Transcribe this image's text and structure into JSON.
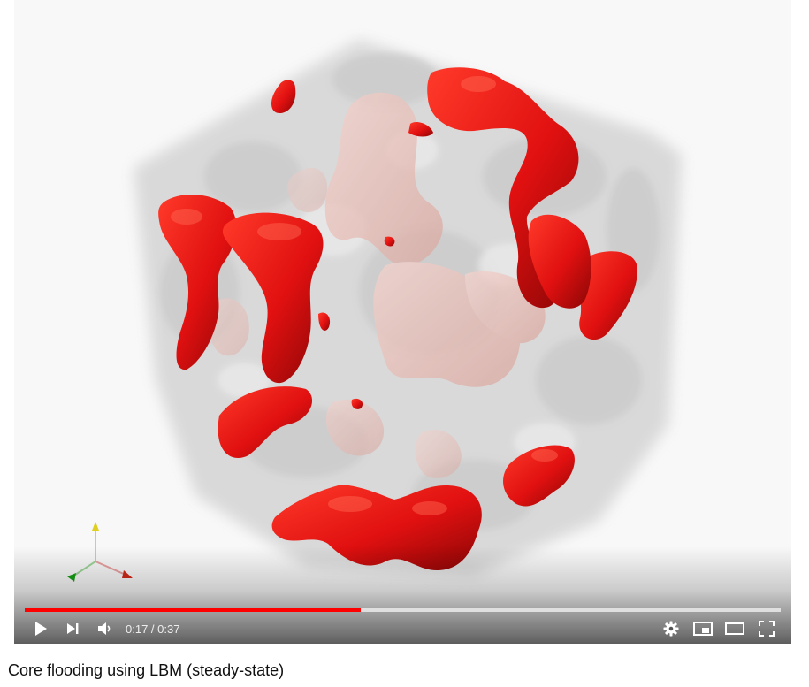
{
  "video": {
    "title": "Core flooding using LBM (steady-state)",
    "current_time": "0:17",
    "duration": "0:37",
    "time_display": "0:17 / 0:37",
    "played_fraction": 0.445,
    "loaded_fraction": 1.0,
    "accent_color": "#ff0000"
  },
  "controls": {
    "play": "play-icon",
    "next": "next-icon",
    "volume": "volume-icon",
    "settings": "gear-icon",
    "miniplayer": "miniplayer-icon",
    "theater": "theater-icon",
    "fullscreen": "fullscreen-icon"
  }
}
